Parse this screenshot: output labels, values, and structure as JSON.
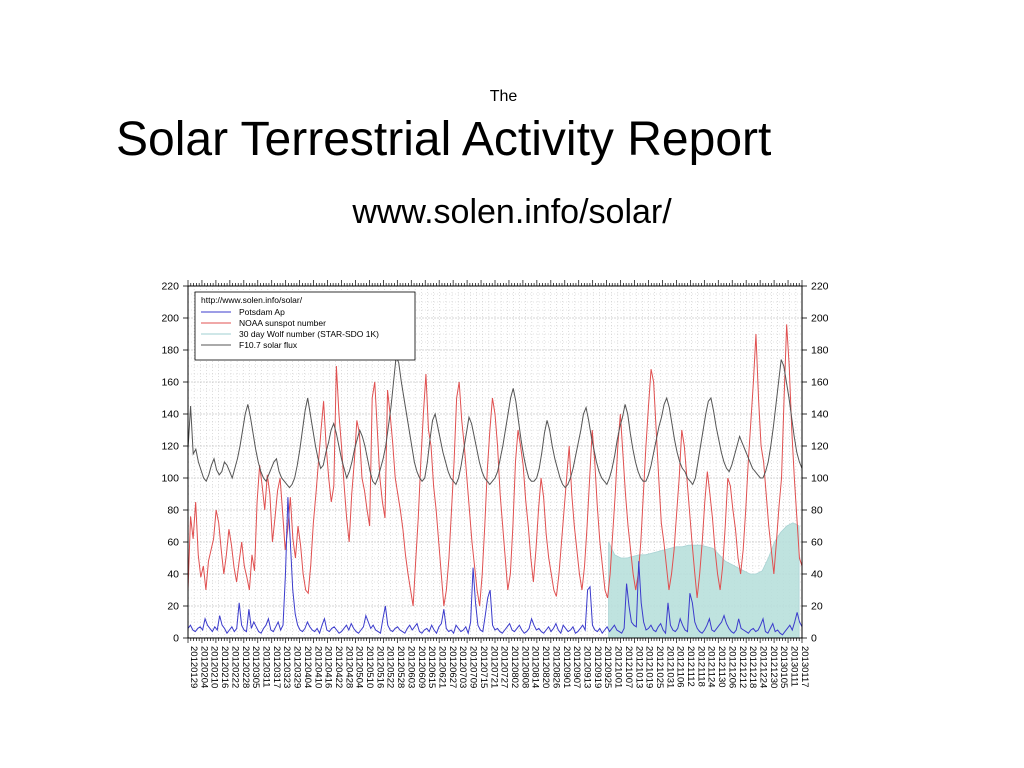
{
  "slide": {
    "pretitle": "The",
    "title": "Solar Terrestrial Activity Report",
    "url": "www.solen.info/solar/"
  },
  "colors": {
    "potsdam": "#3b3bcc",
    "noaa": "#e05050",
    "wolf_fill": "#b9e0dc",
    "wolf_line": "#9fcfd0",
    "f107": "#555555",
    "grid": "#c8c8c8"
  },
  "chart_data": {
    "type": "line",
    "ylim": [
      0,
      220
    ],
    "yticks": [
      0,
      20,
      40,
      60,
      80,
      100,
      120,
      140,
      160,
      180,
      200,
      220
    ],
    "xlabels": [
      "20120129",
      "20120204",
      "20120210",
      "20120216",
      "20120222",
      "20120228",
      "20120305",
      "20120311",
      "20120317",
      "20120323",
      "20120329",
      "20120404",
      "20120410",
      "20120416",
      "20120422",
      "20120428",
      "20120504",
      "20120510",
      "20120516",
      "20120522",
      "20120528",
      "20120603",
      "20120609",
      "20120615",
      "20120621",
      "20120627",
      "20120703",
      "20120709",
      "20120715",
      "20120721",
      "20120727",
      "20120802",
      "20120808",
      "20120814",
      "20120820",
      "20120826",
      "20120901",
      "20120907",
      "20120913",
      "20120919",
      "20120925",
      "20121001",
      "20121007",
      "20121013",
      "20121019",
      "20121025",
      "20121031",
      "20121106",
      "20121112",
      "20121118",
      "20121124",
      "20121130",
      "20121206",
      "20121212",
      "20121218",
      "20121224",
      "20121230",
      "20130105",
      "20130111",
      "20130117"
    ],
    "legend": {
      "header": "http://www.solen.info/solar/",
      "items": [
        "Potsdam Ap",
        "NOAA sunspot number",
        "30 day Wolf number (STAR-SDO 1K)",
        "F10.7 solar flux"
      ]
    },
    "grid": true,
    "series": [
      {
        "name": "Potsdam Ap",
        "values": [
          6,
          8,
          5,
          4,
          6,
          7,
          5,
          12,
          8,
          6,
          4,
          7,
          5,
          14,
          8,
          6,
          3,
          5,
          7,
          4,
          6,
          22,
          8,
          5,
          4,
          18,
          6,
          10,
          7,
          4,
          3,
          6,
          8,
          12,
          5,
          4,
          7,
          10,
          5,
          8,
          40,
          88,
          60,
          30,
          15,
          8,
          5,
          4,
          6,
          10,
          7,
          5,
          4,
          6,
          3,
          8,
          12,
          5,
          4,
          6,
          7,
          5,
          3,
          4,
          6,
          8,
          5,
          9,
          6,
          4,
          3,
          5,
          7,
          14,
          10,
          6,
          8,
          5,
          4,
          3,
          12,
          20,
          8,
          5,
          4,
          6,
          7,
          5,
          4,
          3,
          6,
          8,
          5,
          7,
          9,
          4,
          3,
          5,
          6,
          4,
          8,
          5,
          3,
          7,
          9,
          18,
          6,
          4,
          5,
          3,
          8,
          6,
          4,
          5,
          7,
          3,
          10,
          44,
          22,
          8,
          5,
          4,
          14,
          25,
          30,
          8,
          5,
          6,
          4,
          3,
          5,
          7,
          9,
          5,
          4,
          6,
          8,
          5,
          3,
          4,
          6,
          12,
          8,
          5,
          6,
          4,
          3,
          5,
          7,
          4,
          6,
          9,
          5,
          3,
          8,
          6,
          4,
          5,
          7,
          3,
          4,
          6,
          8,
          5,
          30,
          32,
          8,
          5,
          4,
          6,
          3,
          5,
          7,
          4,
          6,
          8,
          5,
          4,
          3,
          6,
          34,
          20,
          10,
          8,
          7,
          48,
          22,
          10,
          5,
          6,
          8,
          5,
          4,
          7,
          9,
          5,
          3,
          22,
          8,
          5,
          4,
          6,
          12,
          8,
          5,
          4,
          28,
          22,
          10,
          6,
          4,
          3,
          5,
          8,
          12,
          5,
          4,
          6,
          8,
          10,
          14,
          9,
          6,
          4,
          3,
          5,
          12,
          6,
          5,
          4,
          3,
          5,
          6,
          4,
          5,
          8,
          12,
          4,
          3,
          6,
          9,
          4,
          5,
          3,
          2,
          4,
          6,
          8,
          5,
          10,
          16,
          10,
          7
        ],
        "plot_points": null
      },
      {
        "name": "NOAA sunspot number",
        "values": [
          30,
          76,
          62,
          85,
          52,
          38,
          45,
          30,
          48,
          55,
          62,
          80,
          72,
          55,
          40,
          52,
          68,
          58,
          44,
          35,
          48,
          60,
          45,
          38,
          30,
          52,
          42,
          85,
          108,
          95,
          80,
          102,
          90,
          60,
          75,
          92,
          100,
          78,
          55,
          68,
          88,
          62,
          50,
          70,
          58,
          40,
          30,
          28,
          46,
          72,
          90,
          110,
          130,
          148,
          120,
          100,
          85,
          95,
          170,
          140,
          120,
          96,
          75,
          60,
          90,
          110,
          136,
          128,
          100,
          92,
          80,
          70,
          150,
          160,
          130,
          100,
          85,
          75,
          155,
          140,
          122,
          100,
          90,
          80,
          68,
          52,
          40,
          30,
          20,
          48,
          75,
          110,
          140,
          165,
          130,
          120,
          95,
          80,
          60,
          40,
          20,
          30,
          50,
          80,
          110,
          150,
          160,
          136,
          120,
          100,
          80,
          60,
          45,
          30,
          20,
          40,
          70,
          105,
          130,
          150,
          140,
          120,
          90,
          70,
          50,
          30,
          40,
          70,
          110,
          130,
          120,
          108,
          86,
          70,
          50,
          35,
          55,
          80,
          100,
          88,
          65,
          50,
          40,
          30,
          26,
          40,
          60,
          80,
          100,
          120,
          90,
          70,
          55,
          40,
          30,
          45,
          70,
          100,
          130,
          110,
          82,
          60,
          45,
          30,
          25,
          40,
          65,
          90,
          120,
          140,
          115,
          90,
          70,
          55,
          40,
          30,
          40,
          60,
          90,
          120,
          145,
          168,
          160,
          130,
          100,
          72,
          60,
          45,
          30,
          40,
          55,
          78,
          100,
          130,
          120,
          100,
          80,
          60,
          42,
          25,
          40,
          60,
          85,
          104,
          90,
          75,
          55,
          40,
          30,
          45,
          70,
          100,
          95,
          80,
          68,
          50,
          40,
          55,
          80,
          110,
          135,
          160,
          190,
          150,
          120,
          110,
          90,
          70,
          55,
          40,
          60,
          82,
          100,
          150,
          196,
          170,
          130,
          100,
          75,
          50,
          45
        ],
        "plot_points": null
      },
      {
        "name": "30 day Wolf number (STAR-SDO 1K)",
        "values": [
          null
        ],
        "plot_points": null
      },
      {
        "name": "F10.7 solar flux",
        "values": [
          118,
          145,
          115,
          118,
          110,
          105,
          100,
          98,
          102,
          108,
          112,
          105,
          102,
          104,
          110,
          108,
          104,
          100,
          106,
          112,
          120,
          130,
          140,
          146,
          138,
          128,
          118,
          110,
          104,
          100,
          98,
          102,
          106,
          110,
          112,
          104,
          100,
          98,
          96,
          94,
          96,
          100,
          108,
          118,
          130,
          142,
          150,
          140,
          130,
          120,
          112,
          106,
          108,
          116,
          122,
          130,
          134,
          128,
          120,
          112,
          106,
          100,
          104,
          110,
          118,
          124,
          130,
          126,
          120,
          112,
          104,
          98,
          96,
          100,
          106,
          112,
          120,
          132,
          144,
          160,
          176,
          172,
          160,
          150,
          140,
          130,
          120,
          110,
          104,
          100,
          98,
          100,
          110,
          124,
          136,
          140,
          132,
          124,
          116,
          110,
          104,
          100,
          98,
          96,
          100,
          108,
          118,
          128,
          138,
          134,
          126,
          118,
          110,
          104,
          100,
          98,
          96,
          98,
          100,
          104,
          112,
          120,
          130,
          140,
          150,
          156,
          148,
          136,
          124,
          114,
          106,
          100,
          98,
          98,
          100,
          106,
          116,
          128,
          136,
          130,
          120,
          112,
          106,
          100,
          96,
          94,
          96,
          100,
          106,
          114,
          122,
          130,
          140,
          144,
          136,
          126,
          118,
          110,
          104,
          100,
          98,
          96,
          100,
          106,
          114,
          124,
          132,
          138,
          146,
          140,
          128,
          118,
          110,
          104,
          100,
          98,
          98,
          102,
          108,
          116,
          124,
          132,
          138,
          146,
          150,
          144,
          134,
          124,
          116,
          110,
          106,
          104,
          100,
          98,
          96,
          100,
          110,
          120,
          130,
          140,
          148,
          150,
          142,
          132,
          124,
          116,
          110,
          106,
          104,
          108,
          114,
          120,
          126,
          122,
          118,
          114,
          110,
          106,
          104,
          102,
          100,
          100,
          104,
          110,
          120,
          132,
          146,
          160,
          174,
          170,
          160,
          150,
          138,
          126,
          116,
          110,
          106
        ],
        "plot_points": null
      }
    ]
  }
}
